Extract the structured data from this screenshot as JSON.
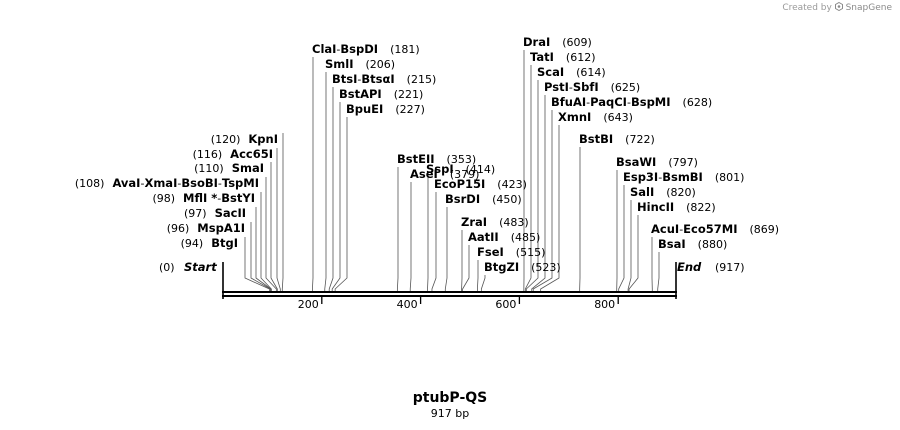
{
  "credit": {
    "prefix": "Created by",
    "brand": "SnapGene",
    "icon": "snapgene-logo-icon"
  },
  "map": {
    "name": "ptubP-QS",
    "length_label": "917 bp",
    "length": 917
  },
  "axis_ticks": [
    {
      "value": 200,
      "label": "200"
    },
    {
      "value": 400,
      "label": "400"
    },
    {
      "value": 600,
      "label": "600"
    },
    {
      "value": 800,
      "label": "800"
    }
  ],
  "ends": {
    "start": {
      "label": "Start",
      "pos": "(0)"
    },
    "end": {
      "label": "End",
      "pos": "(917)"
    }
  },
  "left_sites": [
    {
      "parts": [
        "BtgI"
      ],
      "pos": "(94)",
      "bp": 94
    },
    {
      "parts": [
        "MspA1I"
      ],
      "pos": "(96)",
      "bp": 96
    },
    {
      "parts": [
        "SacII"
      ],
      "pos": "(97)",
      "bp": 97
    },
    {
      "parts": [
        "MflI *",
        "BstYI"
      ],
      "pos": "(98)",
      "bp": 98
    },
    {
      "parts": [
        "AvaI",
        "XmaI",
        "BsoBI",
        "TspMI"
      ],
      "pos": "(108)",
      "bp": 108
    },
    {
      "parts": [
        "SmaI"
      ],
      "pos": "(110)",
      "bp": 110
    },
    {
      "parts": [
        "Acc65I"
      ],
      "pos": "(116)",
      "bp": 116
    },
    {
      "parts": [
        "KpnI"
      ],
      "pos": "(120)",
      "bp": 120
    }
  ],
  "right_sites": [
    {
      "parts": [
        "ClaI",
        "BspDI"
      ],
      "pos": "(181)",
      "bp": 181
    },
    {
      "parts": [
        "SmlI"
      ],
      "pos": "(206)",
      "bp": 206
    },
    {
      "parts": [
        "BtsI",
        "BtsαI"
      ],
      "pos": "(215)",
      "bp": 215
    },
    {
      "parts": [
        "BstAPI"
      ],
      "pos": "(221)",
      "bp": 221
    },
    {
      "parts": [
        "BpuEI"
      ],
      "pos": "(227)",
      "bp": 227
    },
    {
      "parts": [
        "BstEII"
      ],
      "pos": "(353)",
      "bp": 353
    },
    {
      "parts": [
        "AseI"
      ],
      "pos": "(379)",
      "bp": 379
    },
    {
      "parts": [
        "SspI"
      ],
      "pos": "(414)",
      "bp": 414
    },
    {
      "parts": [
        "EcoP15I"
      ],
      "pos": "(423)",
      "bp": 423
    },
    {
      "parts": [
        "BsrDI"
      ],
      "pos": "(450)",
      "bp": 450
    },
    {
      "parts": [
        "ZraI"
      ],
      "pos": "(483)",
      "bp": 483
    },
    {
      "parts": [
        "AatII"
      ],
      "pos": "(485)",
      "bp": 485
    },
    {
      "parts": [
        "FseI"
      ],
      "pos": "(515)",
      "bp": 515
    },
    {
      "parts": [
        "BtgZI"
      ],
      "pos": "(523)",
      "bp": 523
    },
    {
      "parts": [
        "DraI"
      ],
      "pos": "(609)",
      "bp": 609
    },
    {
      "parts": [
        "TatI"
      ],
      "pos": "(612)",
      "bp": 612
    },
    {
      "parts": [
        "ScaI"
      ],
      "pos": "(614)",
      "bp": 614
    },
    {
      "parts": [
        "PstI",
        "SbfI"
      ],
      "pos": "(625)",
      "bp": 625
    },
    {
      "parts": [
        "BfuAI",
        "PaqCI",
        "BspMI"
      ],
      "pos": "(628)",
      "bp": 628
    },
    {
      "parts": [
        "XmnI"
      ],
      "pos": "(643)",
      "bp": 643
    },
    {
      "parts": [
        "BstBI"
      ],
      "pos": "(722)",
      "bp": 722
    },
    {
      "parts": [
        "BsaWI"
      ],
      "pos": "(797)",
      "bp": 797
    },
    {
      "parts": [
        "Esp3I",
        "BsmBI"
      ],
      "pos": "(801)",
      "bp": 801
    },
    {
      "parts": [
        "SalI"
      ],
      "pos": "(820)",
      "bp": 820
    },
    {
      "parts": [
        "HincII"
      ],
      "pos": "(822)",
      "bp": 822
    },
    {
      "parts": [
        "AcuI",
        "Eco57MI"
      ],
      "pos": "(869)",
      "bp": 869
    },
    {
      "parts": [
        "BsaI"
      ],
      "pos": "(880)",
      "bp": 880
    }
  ]
}
